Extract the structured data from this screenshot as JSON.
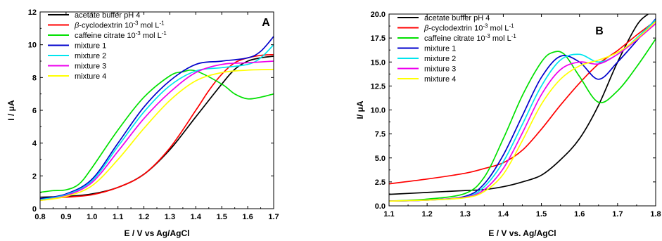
{
  "chart_data": [
    {
      "type": "line",
      "panel_label": "A",
      "xlabel": "E / V vs Ag/AgCl",
      "ylabel": "I / μA",
      "xlim": [
        0.8,
        1.7
      ],
      "ylim": [
        0,
        12
      ],
      "xticks": [
        0.8,
        0.9,
        1.0,
        1.1,
        1.2,
        1.3,
        1.4,
        1.5,
        1.6,
        1.7
      ],
      "yticks": [
        0,
        2,
        4,
        6,
        8,
        10,
        12
      ],
      "xtick_labels": [
        "0.8",
        "0.9",
        "1.0",
        "1.1",
        "1.2",
        "1.3",
        "1.4",
        "1.5",
        "1.6",
        "1.7"
      ],
      "ytick_labels": [
        "0",
        "2",
        "4",
        "6",
        "8",
        "10",
        "12"
      ],
      "grid": false,
      "legend_position": "top-left",
      "series": [
        {
          "name": "acetate buffer pH 4",
          "color": "#000000",
          "x": [
            0.8,
            0.9,
            1.0,
            1.1,
            1.2,
            1.3,
            1.4,
            1.5,
            1.55,
            1.6,
            1.65,
            1.7
          ],
          "y": [
            0.7,
            0.75,
            0.9,
            1.3,
            2.1,
            3.6,
            5.6,
            7.6,
            8.5,
            9.0,
            9.2,
            9.3
          ]
        },
        {
          "name": "β-cyclodextrin 10⁻³ mol L⁻¹",
          "color": "#ff0000",
          "x": [
            0.8,
            0.9,
            1.0,
            1.1,
            1.2,
            1.3,
            1.4,
            1.45,
            1.5,
            1.55,
            1.6,
            1.65,
            1.7
          ],
          "y": [
            0.6,
            0.7,
            0.85,
            1.3,
            2.1,
            3.7,
            6.0,
            7.2,
            8.2,
            8.9,
            9.2,
            9.35,
            9.4
          ]
        },
        {
          "name": "caffeine citrate 10⁻³ mol L⁻¹",
          "color": "#00e000",
          "x": [
            0.8,
            0.85,
            0.9,
            0.95,
            1.0,
            1.1,
            1.2,
            1.3,
            1.35,
            1.4,
            1.5,
            1.55,
            1.6,
            1.65,
            1.7
          ],
          "y": [
            1.0,
            1.1,
            1.15,
            1.5,
            2.5,
            4.8,
            6.8,
            8.1,
            8.35,
            8.4,
            7.6,
            7.0,
            6.7,
            6.8,
            7.0
          ]
        },
        {
          "name": "mixture 1",
          "color": "#0000cc",
          "x": [
            0.8,
            0.9,
            1.0,
            1.1,
            1.2,
            1.3,
            1.4,
            1.5,
            1.6,
            1.65,
            1.7
          ],
          "y": [
            0.6,
            0.9,
            1.8,
            4.0,
            6.2,
            7.8,
            8.8,
            9.0,
            9.2,
            9.6,
            10.5
          ]
        },
        {
          "name": "mixture 2",
          "color": "#00e5ee",
          "x": [
            0.8,
            0.9,
            1.0,
            1.1,
            1.2,
            1.3,
            1.4,
            1.5,
            1.6,
            1.65,
            1.7
          ],
          "y": [
            0.55,
            0.85,
            1.7,
            3.8,
            5.9,
            7.5,
            8.4,
            8.6,
            8.8,
            9.2,
            10.0
          ]
        },
        {
          "name": "mixture 3",
          "color": "#ee00ee",
          "x": [
            0.8,
            0.9,
            1.0,
            1.1,
            1.2,
            1.3,
            1.4,
            1.5,
            1.6,
            1.7
          ],
          "y": [
            0.5,
            0.8,
            1.6,
            3.5,
            5.5,
            7.1,
            8.3,
            8.8,
            8.9,
            9.0
          ]
        },
        {
          "name": "mixture 4",
          "color": "#ffff00",
          "x": [
            0.8,
            0.9,
            1.0,
            1.1,
            1.2,
            1.3,
            1.4,
            1.5,
            1.6,
            1.7
          ],
          "y": [
            0.5,
            0.75,
            1.4,
            3.0,
            4.9,
            6.6,
            7.8,
            8.3,
            8.45,
            8.5
          ]
        }
      ]
    },
    {
      "type": "line",
      "panel_label": "B",
      "xlabel": "E / V vs. Ag/AgCl",
      "ylabel": "I/ μA",
      "xlim": [
        1.1,
        1.8
      ],
      "ylim": [
        0,
        20
      ],
      "xticks": [
        1.1,
        1.2,
        1.3,
        1.4,
        1.5,
        1.6,
        1.7,
        1.8
      ],
      "yticks": [
        0,
        2.5,
        5,
        7.5,
        10,
        12.5,
        15,
        17.5,
        20
      ],
      "xtick_labels": [
        "1.1",
        "1.2",
        "1.3",
        "1.4",
        "1.5",
        "1.6",
        "1.7",
        "1.8"
      ],
      "ytick_labels": [
        "0.0",
        "2.5",
        "5.0",
        "7.5",
        "10.0",
        "12.5",
        "15.0",
        "17.5",
        "20.0"
      ],
      "grid": false,
      "legend_position": "top-left",
      "series": [
        {
          "name": "acetate buffer pH 4",
          "color": "#000000",
          "x": [
            1.1,
            1.2,
            1.3,
            1.35,
            1.4,
            1.45,
            1.5,
            1.55,
            1.6,
            1.65,
            1.7,
            1.75,
            1.78
          ],
          "y": [
            1.2,
            1.4,
            1.6,
            1.7,
            2.0,
            2.5,
            3.2,
            4.8,
            7.0,
            10.5,
            15.0,
            18.8,
            20.0
          ]
        },
        {
          "name": "β-cyclodextrin 10⁻³ mol L⁻¹",
          "color": "#ff0000",
          "x": [
            1.1,
            1.2,
            1.3,
            1.35,
            1.4,
            1.45,
            1.5,
            1.55,
            1.6,
            1.65,
            1.7,
            1.75,
            1.8
          ],
          "y": [
            2.3,
            2.8,
            3.4,
            3.9,
            4.5,
            5.8,
            8.0,
            10.5,
            12.8,
            14.8,
            16.2,
            17.8,
            19.3
          ]
        },
        {
          "name": "caffeine citrate 10⁻³ mol L⁻¹",
          "color": "#00e000",
          "x": [
            1.1,
            1.2,
            1.3,
            1.35,
            1.4,
            1.45,
            1.5,
            1.53,
            1.56,
            1.6,
            1.65,
            1.7,
            1.75,
            1.8
          ],
          "y": [
            0.5,
            0.7,
            1.3,
            3.0,
            7.0,
            11.5,
            15.0,
            16.0,
            15.8,
            13.5,
            10.8,
            12.0,
            14.5,
            17.4
          ]
        },
        {
          "name": "mixture 1",
          "color": "#0000cc",
          "x": [
            1.1,
            1.2,
            1.3,
            1.35,
            1.4,
            1.45,
            1.5,
            1.55,
            1.6,
            1.65,
            1.7,
            1.75,
            1.8
          ],
          "y": [
            0.5,
            0.6,
            1.0,
            2.3,
            5.3,
            9.4,
            13.4,
            15.6,
            15.0,
            13.2,
            15.0,
            17.2,
            19.5
          ]
        },
        {
          "name": "mixture 2",
          "color": "#00e5ee",
          "x": [
            1.1,
            1.2,
            1.3,
            1.35,
            1.4,
            1.45,
            1.5,
            1.55,
            1.6,
            1.65,
            1.7,
            1.75,
            1.8
          ],
          "y": [
            0.5,
            0.6,
            0.9,
            2.0,
            4.6,
            8.5,
            12.5,
            15.2,
            15.8,
            15.0,
            15.8,
            17.5,
            19.4
          ]
        },
        {
          "name": "mixture 3",
          "color": "#ee00ee",
          "x": [
            1.1,
            1.2,
            1.3,
            1.35,
            1.4,
            1.45,
            1.5,
            1.55,
            1.6,
            1.65,
            1.7,
            1.75,
            1.8
          ],
          "y": [
            0.5,
            0.6,
            0.9,
            1.7,
            3.9,
            7.6,
            11.6,
            14.2,
            15.0,
            14.8,
            15.8,
            17.3,
            19.0
          ]
        },
        {
          "name": "mixture 4",
          "color": "#ffff00",
          "x": [
            1.1,
            1.2,
            1.3,
            1.35,
            1.4,
            1.45,
            1.5,
            1.55,
            1.6,
            1.65,
            1.7,
            1.75,
            1.8
          ],
          "y": [
            0.5,
            0.6,
            0.85,
            1.5,
            3.3,
            6.8,
            10.6,
            13.2,
            14.6,
            15.2,
            16.0,
            17.4,
            19.2
          ]
        }
      ]
    }
  ]
}
